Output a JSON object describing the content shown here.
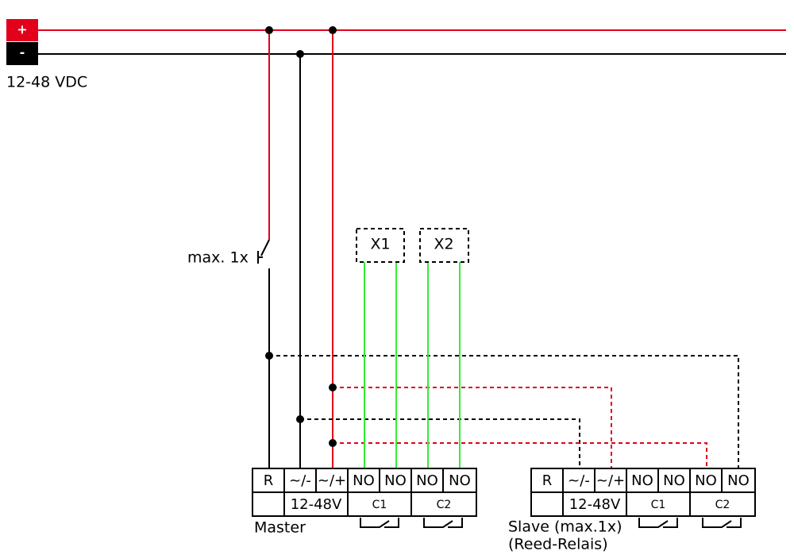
{
  "supply": {
    "plus": "+",
    "minus": "-",
    "voltage": "12-48 VDC"
  },
  "switch_label": "max. 1x",
  "loads": [
    "X1",
    "X2"
  ],
  "master": {
    "terminals": [
      "R",
      "~/-",
      "~/+",
      "NO",
      "NO",
      "NO",
      "NO"
    ],
    "supply": "12-48V",
    "contacts": [
      "C1",
      "C2"
    ],
    "label": "Master"
  },
  "slave": {
    "terminals": [
      "R",
      "~/-",
      "~/+",
      "NO",
      "NO",
      "NO",
      "NO"
    ],
    "supply": "12-48V",
    "contacts": [
      "C1",
      "C2"
    ],
    "label": [
      "Slave (max.1x)",
      "(Reed-Relais)"
    ]
  }
}
